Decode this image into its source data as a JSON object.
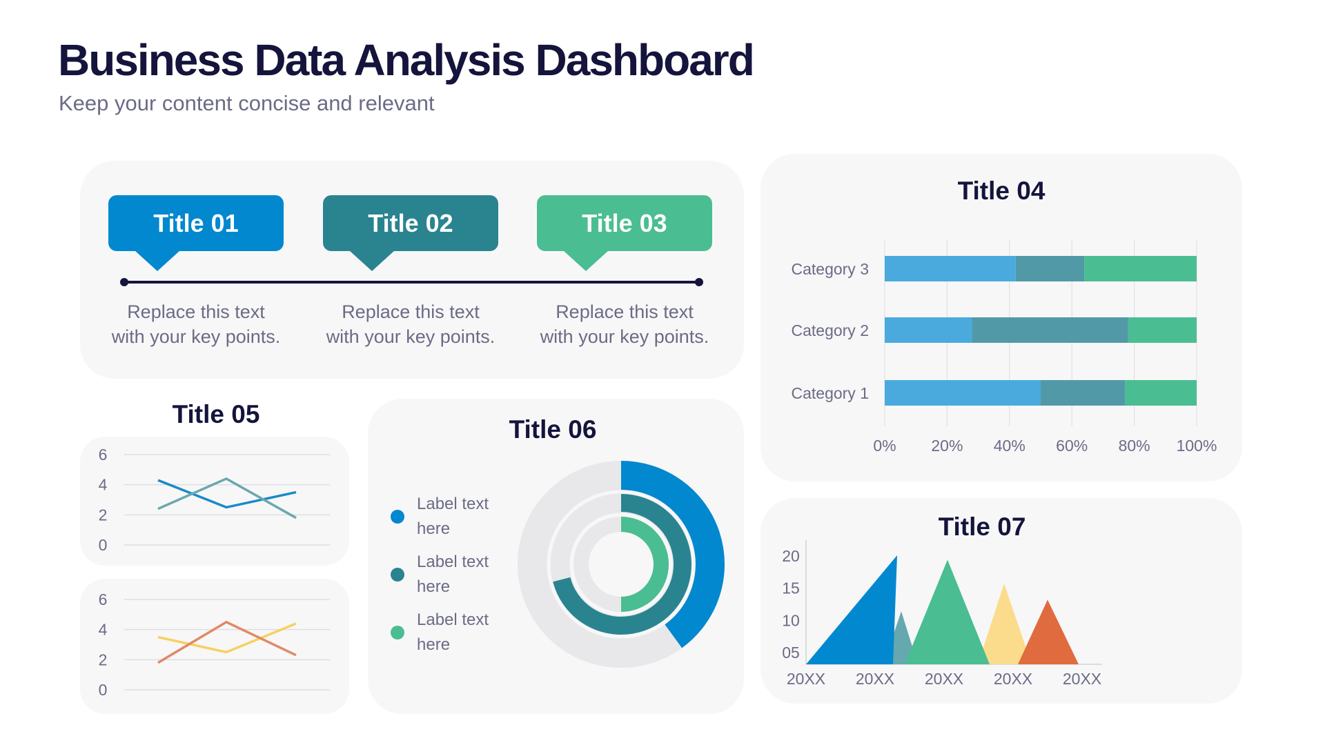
{
  "header": {
    "title": "Business Data Analysis Dashboard",
    "subtitle": "Keep your content concise and relevant"
  },
  "timeline": {
    "items": [
      {
        "title": "Title 01",
        "text_line1": "Replace this text",
        "text_line2": "with your key points.",
        "color": "#0288cf"
      },
      {
        "title": "Title 02",
        "text_line1": "Replace this text",
        "text_line2": "with your key points.",
        "color": "#2a8490"
      },
      {
        "title": "Title 03",
        "text_line1": "Replace this text",
        "text_line2": "with your key points.",
        "color": "#4bbd92"
      }
    ]
  },
  "titles": {
    "t04": "Title 04",
    "t05": "Title 05",
    "t06": "Title 06",
    "t07": "Title 07"
  },
  "donut_legend": [
    {
      "line1": "Label text",
      "line2": "here",
      "color": "#0288cf"
    },
    {
      "line1": "Label text",
      "line2": "here",
      "color": "#2a8490"
    },
    {
      "line1": "Label text",
      "line2": "here",
      "color": "#4bbd92"
    }
  ],
  "chart_data": [
    {
      "id": "stacked-bar",
      "type": "bar",
      "orientation": "horizontal",
      "stacked": "percent",
      "title": "Title 04",
      "categories": [
        "Category 1",
        "Category 2",
        "Category 3"
      ],
      "series": [
        {
          "values": [
            50,
            28,
            42
          ],
          "color": "#4aaadd"
        },
        {
          "values": [
            27,
            50,
            22
          ],
          "color": "#5299a8"
        },
        {
          "values": [
            23,
            22,
            36
          ],
          "color": "#4bbd92"
        }
      ],
      "xticks": [
        "0%",
        "20%",
        "40%",
        "60%",
        "80%",
        "100%"
      ],
      "xlim": [
        0,
        100
      ],
      "grid": true
    },
    {
      "id": "line-a",
      "type": "line",
      "title": "Title 05",
      "x": [
        1,
        2,
        3
      ],
      "series": [
        {
          "values": [
            4.3,
            2.5,
            3.5
          ],
          "color": "#1a8ac8"
        },
        {
          "values": [
            2.4,
            4.4,
            1.8
          ],
          "color": "#6aa8ad"
        }
      ],
      "yticks": [
        "6",
        "4",
        "2",
        "0"
      ],
      "ylim": [
        0,
        6
      ],
      "grid": true
    },
    {
      "id": "line-b",
      "type": "line",
      "x": [
        1,
        2,
        3
      ],
      "series": [
        {
          "values": [
            3.5,
            2.5,
            4.4
          ],
          "color": "#f7d060"
        },
        {
          "values": [
            1.8,
            4.5,
            2.3
          ],
          "color": "#e08a66"
        }
      ],
      "yticks": [
        "6",
        "4",
        "2",
        "0"
      ],
      "ylim": [
        0,
        6
      ],
      "grid": true
    },
    {
      "id": "radial",
      "type": "pie",
      "variant": "radial-bar",
      "title": "Title 06",
      "values_percent": [
        40,
        71,
        50
      ],
      "colors": [
        "#0288cf",
        "#2a8490",
        "#4bbd92"
      ],
      "track_color": "#e8e8ea"
    },
    {
      "id": "mountain",
      "type": "area",
      "variant": "triangles",
      "title": "Title 07",
      "xticks": [
        "20XX",
        "20XX",
        "20XX",
        "20XX",
        "20XX"
      ],
      "yticks": [
        "20",
        "15",
        "10",
        "05"
      ],
      "ylim": [
        3,
        22
      ],
      "peaks": [
        {
          "value": 20,
          "color": "#0288cf"
        },
        {
          "value": 11.3,
          "color": "#66a8b0"
        },
        {
          "value": 19.3,
          "color": "#4bbd92"
        },
        {
          "value": 15.6,
          "color": "#fbdc8c"
        },
        {
          "value": 13.1,
          "color": "#e06b3e"
        }
      ]
    }
  ]
}
